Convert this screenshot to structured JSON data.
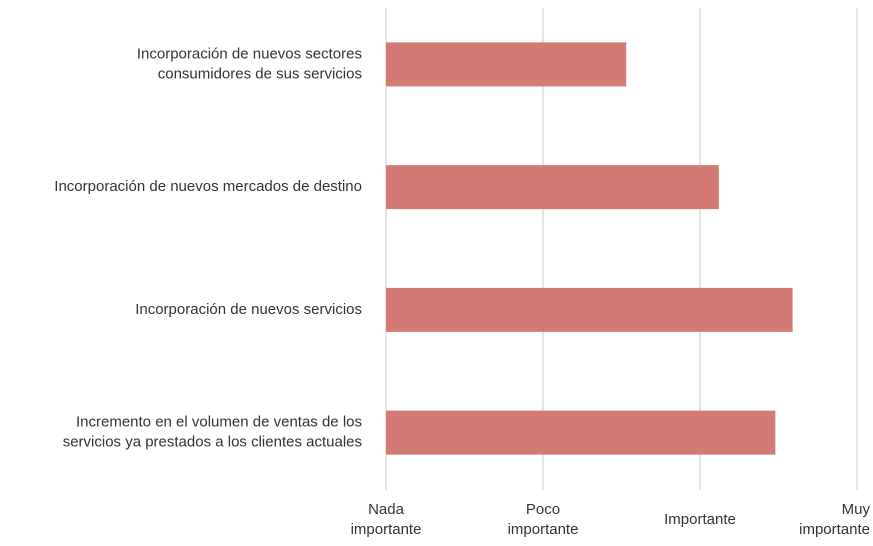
{
  "chart_data": {
    "type": "barh",
    "categories": [
      "Incorporación de nuevos sectores consumidores de sus servicios",
      "Incorporación de nuevos mercados de destino",
      "Incorporación de nuevos servicios",
      "Incremento en el volumen de ventas de los servicios ya prestados a los clientes actuales"
    ],
    "values": [
      2.53,
      3.12,
      3.59,
      3.48
    ],
    "color": "#d47a74",
    "xlim": [
      1,
      4
    ],
    "xticks": [
      {
        "value": 1,
        "label": "Nada importante"
      },
      {
        "value": 2,
        "label": "Poco importante"
      },
      {
        "value": 3,
        "label": "Importante"
      },
      {
        "value": 4,
        "label": "Muy importante"
      }
    ],
    "grid": true
  }
}
